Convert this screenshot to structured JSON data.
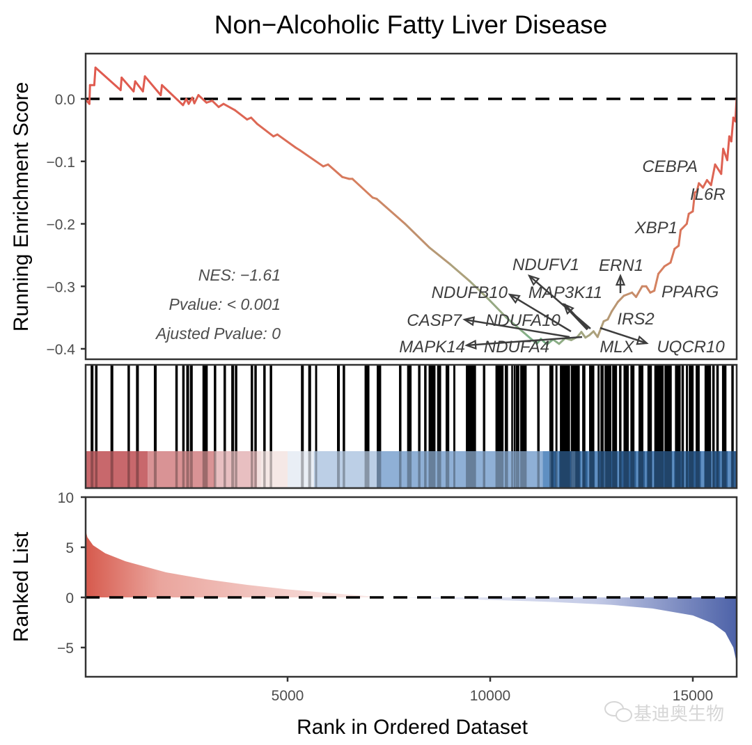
{
  "chart_data": {
    "type": "line",
    "title": "Non−Alcoholic Fatty Liver Disease",
    "xlabel": "Rank in Ordered Dataset",
    "x_ticks": [
      5000,
      10000,
      15000
    ],
    "x_tick_labels": [
      "5000",
      "10000",
      "15000"
    ],
    "xlim": [
      0,
      16080
    ],
    "panels": {
      "running_es": {
        "ylabel": "Running Enrichment Score",
        "ylim": [
          -0.41,
          0.065
        ],
        "y_ticks": [
          0.0,
          -0.1,
          -0.2,
          -0.3,
          -0.4
        ],
        "y_tick_labels": [
          "0.0",
          "−0.1",
          "−0.2",
          "−0.3",
          "−0.4"
        ],
        "reference_line": 0,
        "curve_color_scale": [
          "#e05a4f",
          "#d6805f",
          "#a9a37e",
          "#78b48a"
        ],
        "points": [
          [
            0,
            0.0
          ],
          [
            110,
            -0.008
          ],
          [
            125,
            0.022
          ],
          [
            230,
            0.022
          ],
          [
            260,
            0.05
          ],
          [
            880,
            0.014
          ],
          [
            905,
            0.034
          ],
          [
            1200,
            0.012
          ],
          [
            1240,
            0.028
          ],
          [
            1430,
            0.012
          ],
          [
            1480,
            0.036
          ],
          [
            1870,
            0.006
          ],
          [
            1900,
            0.022
          ],
          [
            2420,
            -0.01
          ],
          [
            2500,
            0.0
          ],
          [
            2560,
            -0.008
          ],
          [
            2650,
            0.002
          ],
          [
            2700,
            -0.007
          ],
          [
            2800,
            0.006
          ],
          [
            3000,
            -0.006
          ],
          [
            3140,
            -0.003
          ],
          [
            3300,
            -0.013
          ],
          [
            3420,
            -0.008
          ],
          [
            3700,
            -0.018
          ],
          [
            4000,
            -0.033
          ],
          [
            4100,
            -0.03
          ],
          [
            4250,
            -0.04
          ],
          [
            4650,
            -0.06
          ],
          [
            4750,
            -0.057
          ],
          [
            5200,
            -0.078
          ],
          [
            5300,
            -0.082
          ],
          [
            5880,
            -0.108
          ],
          [
            6000,
            -0.105
          ],
          [
            6350,
            -0.125
          ],
          [
            6520,
            -0.128
          ],
          [
            6600,
            -0.128
          ],
          [
            7100,
            -0.158
          ],
          [
            7200,
            -0.16
          ],
          [
            7900,
            -0.2
          ],
          [
            8500,
            -0.238
          ],
          [
            9000,
            -0.264
          ],
          [
            9500,
            -0.292
          ],
          [
            9950,
            -0.32
          ],
          [
            10400,
            -0.35
          ],
          [
            10900,
            -0.378
          ],
          [
            11150,
            -0.392
          ],
          [
            11250,
            -0.384
          ],
          [
            11400,
            -0.393
          ],
          [
            11550,
            -0.385
          ],
          [
            11700,
            -0.392
          ],
          [
            11850,
            -0.383
          ],
          [
            12000,
            -0.386
          ],
          [
            12150,
            -0.381
          ],
          [
            12250,
            -0.373
          ],
          [
            12350,
            -0.382
          ],
          [
            12450,
            -0.378
          ],
          [
            12550,
            -0.372
          ],
          [
            12650,
            -0.381
          ],
          [
            12800,
            -0.356
          ],
          [
            12900,
            -0.353
          ],
          [
            13000,
            -0.34
          ],
          [
            13150,
            -0.325
          ],
          [
            13300,
            -0.315
          ],
          [
            13500,
            -0.31
          ],
          [
            13600,
            -0.317
          ],
          [
            13750,
            -0.3
          ],
          [
            13850,
            -0.3
          ],
          [
            13950,
            -0.31
          ],
          [
            14050,
            -0.307
          ],
          [
            14150,
            -0.28
          ],
          [
            14300,
            -0.268
          ],
          [
            14450,
            -0.262
          ],
          [
            14550,
            -0.24
          ],
          [
            14650,
            -0.235
          ],
          [
            14700,
            -0.21
          ],
          [
            14850,
            -0.2
          ],
          [
            14900,
            -0.184
          ],
          [
            15000,
            -0.18
          ],
          [
            15050,
            -0.15
          ],
          [
            15100,
            -0.148
          ],
          [
            15150,
            -0.135
          ],
          [
            15250,
            -0.142
          ],
          [
            15350,
            -0.13
          ],
          [
            15450,
            -0.138
          ],
          [
            15550,
            -0.105
          ],
          [
            15700,
            -0.12
          ],
          [
            15750,
            -0.08
          ],
          [
            15850,
            -0.098
          ],
          [
            15900,
            -0.06
          ],
          [
            15950,
            -0.068
          ],
          [
            16000,
            -0.03
          ],
          [
            16050,
            -0.036
          ],
          [
            16080,
            0.0
          ]
        ],
        "stats": {
          "nes": "NES: −1.61",
          "pvalue": "Pvalue: < 0.001",
          "adj_pvalue": "Ajusted Pvalue: 0"
        },
        "gene_labels": [
          {
            "gene": "CEBPA",
            "rank": 15300,
            "es": -0.125,
            "arrow": false
          },
          {
            "gene": "IL6R",
            "rank": 15750,
            "es": -0.155,
            "arrow": false
          },
          {
            "gene": "XBP1",
            "rank": 14600,
            "es": -0.205,
            "arrow": false
          },
          {
            "gene": "NDUFV1",
            "rank": 12050,
            "es": -0.385,
            "arrow": true
          },
          {
            "gene": "ERN1",
            "rank": 13230,
            "es": -0.315,
            "arrow": true
          },
          {
            "gene": "NDUFB10",
            "rank": 11900,
            "es": -0.385,
            "arrow": true
          },
          {
            "gene": "MAP3K11",
            "rank": 12100,
            "es": -0.385,
            "arrow": true
          },
          {
            "gene": "PPARG",
            "rank": 13950,
            "es": -0.31,
            "arrow": false
          },
          {
            "gene": "CASP7",
            "rank": 11700,
            "es": -0.392,
            "arrow": true
          },
          {
            "gene": "NDUFA10",
            "rank": 11650,
            "es": -0.39,
            "arrow": false
          },
          {
            "gene": "IRS2",
            "rank": 12900,
            "es": -0.353,
            "arrow": false
          },
          {
            "gene": "MAPK14",
            "rank": 12050,
            "es": -0.385,
            "arrow": true
          },
          {
            "gene": "NDUFA4",
            "rank": 11300,
            "es": -0.392,
            "arrow": false
          },
          {
            "gene": "MLX",
            "rank": 12600,
            "es": -0.378,
            "arrow": false
          },
          {
            "gene": "UQCR10",
            "rank": 12650,
            "es": -0.368,
            "arrow": true
          }
        ]
      },
      "gene_hits": {
        "hit_segments": [
          [
            140,
            210
          ],
          [
            250,
            310
          ],
          [
            630,
            700
          ],
          [
            1050,
            1110
          ],
          [
            1260,
            1330
          ],
          [
            1700,
            1770
          ],
          [
            2230,
            2290
          ],
          [
            2400,
            2460
          ],
          [
            2500,
            2570
          ],
          [
            2590,
            2660
          ],
          [
            2900,
            3030
          ],
          [
            3180,
            3240
          ],
          [
            3420,
            3480
          ],
          [
            3610,
            3680
          ],
          [
            3700,
            3760
          ],
          [
            4090,
            4150
          ],
          [
            4180,
            4240
          ],
          [
            4400,
            4460
          ],
          [
            4560,
            4620
          ],
          [
            5330,
            5400
          ],
          [
            5510,
            5580
          ],
          [
            5680,
            5730
          ],
          [
            6220,
            6290
          ],
          [
            6360,
            6420
          ],
          [
            6900,
            7020
          ],
          [
            7200,
            7310
          ],
          [
            7750,
            7810
          ],
          [
            7950,
            8060
          ],
          [
            8220,
            8280
          ],
          [
            8370,
            8430
          ],
          [
            8480,
            8650
          ],
          [
            8690,
            8790
          ],
          [
            8900,
            8990
          ],
          [
            9090,
            9140
          ],
          [
            9400,
            9650
          ],
          [
            9820,
            9880
          ],
          [
            10130,
            10330
          ],
          [
            10360,
            10440
          ],
          [
            10520,
            10560
          ],
          [
            10580,
            10600
          ],
          [
            10630,
            10720
          ],
          [
            10740,
            10900
          ],
          [
            11160,
            11220
          ],
          [
            11460,
            11560
          ],
          [
            11610,
            11660
          ],
          [
            11720,
            11970
          ],
          [
            11990,
            12210
          ],
          [
            12270,
            12350
          ],
          [
            12440,
            12570
          ],
          [
            12650,
            12700
          ],
          [
            12720,
            12800
          ],
          [
            12820,
            12990
          ],
          [
            13010,
            13130
          ],
          [
            13180,
            13240
          ],
          [
            13290,
            13420
          ],
          [
            13460,
            13560
          ],
          [
            13660,
            13780
          ],
          [
            13880,
            13990
          ],
          [
            14050,
            14280
          ],
          [
            14300,
            14480
          ],
          [
            14560,
            14700
          ],
          [
            14720,
            14780
          ],
          [
            14830,
            14880
          ],
          [
            14900,
            15020
          ],
          [
            15070,
            15170
          ],
          [
            15290,
            15450
          ],
          [
            15480,
            15540
          ],
          [
            15580,
            15640
          ],
          [
            15720,
            15830
          ],
          [
            15950,
            16010
          ]
        ],
        "heat_bins": [
          {
            "from": 0,
            "to": 1550,
            "color": "#c8686c"
          },
          {
            "from": 1550,
            "to": 3200,
            "color": "#d99395"
          },
          {
            "from": 3200,
            "to": 4250,
            "color": "#e8bfc1"
          },
          {
            "from": 4250,
            "to": 4350,
            "color": "#f3e0df"
          },
          {
            "from": 4350,
            "to": 5000,
            "color": "#f5e8e6"
          },
          {
            "from": 5000,
            "to": 5650,
            "color": "#e9eef5"
          },
          {
            "from": 5650,
            "to": 7200,
            "color": "#bccfe6"
          },
          {
            "from": 7200,
            "to": 11330,
            "color": "#8fb0d6"
          },
          {
            "from": 11330,
            "to": 16080,
            "color": "#2f5f92"
          }
        ],
        "heat_bins_light_right": [
          {
            "from": 11300,
            "to": 12200,
            "color": "#5f8fc2"
          }
        ]
      },
      "ranked_list": {
        "ylabel": "Ranked List",
        "ylim": [
          -8,
          10
        ],
        "y_ticks": [
          10,
          5,
          0,
          -5
        ],
        "y_tick_labels": [
          "10",
          "5",
          "0",
          "−5"
        ],
        "reference_line": 0,
        "max_value": 7.0,
        "min_value": -6.5,
        "zero_cross_rank": 7400,
        "profile": [
          [
            0,
            7.0
          ],
          [
            60,
            6.0
          ],
          [
            200,
            5.2
          ],
          [
            500,
            4.4
          ],
          [
            1000,
            3.6
          ],
          [
            2000,
            2.5
          ],
          [
            3000,
            1.8
          ],
          [
            4000,
            1.25
          ],
          [
            5000,
            0.8
          ],
          [
            6000,
            0.45
          ],
          [
            7000,
            0.12
          ],
          [
            7400,
            0.0
          ],
          [
            8500,
            -0.1
          ],
          [
            10000,
            -0.25
          ],
          [
            11500,
            -0.45
          ],
          [
            13000,
            -0.75
          ],
          [
            14000,
            -1.1
          ],
          [
            15000,
            -1.8
          ],
          [
            15500,
            -2.6
          ],
          [
            15800,
            -3.5
          ],
          [
            16000,
            -5.0
          ],
          [
            16080,
            -6.5
          ]
        ],
        "pos_color": "#d2574a",
        "neg_color": "#4b62a8"
      }
    },
    "watermark": "基迪奥生物"
  }
}
